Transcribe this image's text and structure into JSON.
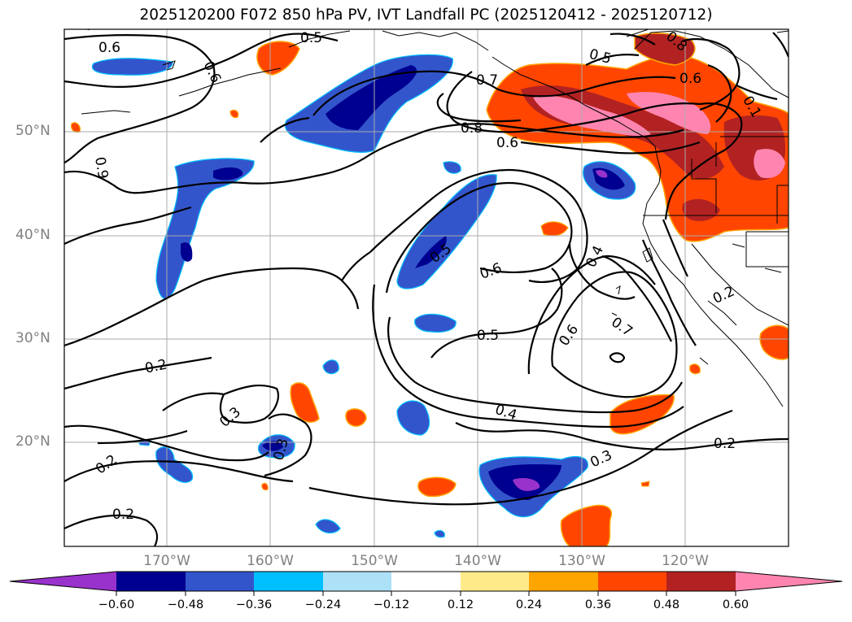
{
  "title": "2025120200 F072 850 hPa PV, IVT Landfall PC (2025120412 - 2025120712)",
  "map": {
    "lat_labels": [
      "50°N",
      "40°N",
      "30°N",
      "20°N"
    ],
    "lon_labels": [
      "170°W",
      "160°W",
      "150°W",
      "140°W",
      "130°W",
      "120°W"
    ],
    "contour_labels": [
      "0.6",
      "0.5",
      "0.6",
      "0.9",
      "0.7",
      "0.8",
      "0.6",
      "0.5",
      "0.6",
      "0.4",
      "0.6",
      "0.7",
      "0.5",
      "0.4",
      "0.2",
      "0.3",
      "0.3",
      "0.2",
      "0.2",
      "0.2",
      "0.3",
      "0.2",
      "0.5",
      "0.8",
      "0.6",
      "0.1"
    ]
  },
  "colorbar": {
    "ticks": [
      "−0.60",
      "−0.48",
      "−0.36",
      "−0.24",
      "−0.12",
      "0.12",
      "0.24",
      "0.36",
      "0.48",
      "0.60"
    ],
    "colors": [
      "#9932CC",
      "#000090",
      "#3355CC",
      "#00BFFF",
      "#ADE1F8",
      "#FFFFFF",
      "#FFEA8A",
      "#FFA500",
      "#FF4500",
      "#B22222",
      "#FF85B0"
    ]
  },
  "colors": {
    "contour": "#000000",
    "grid": "#AAAAAA",
    "coast": "#000000"
  }
}
